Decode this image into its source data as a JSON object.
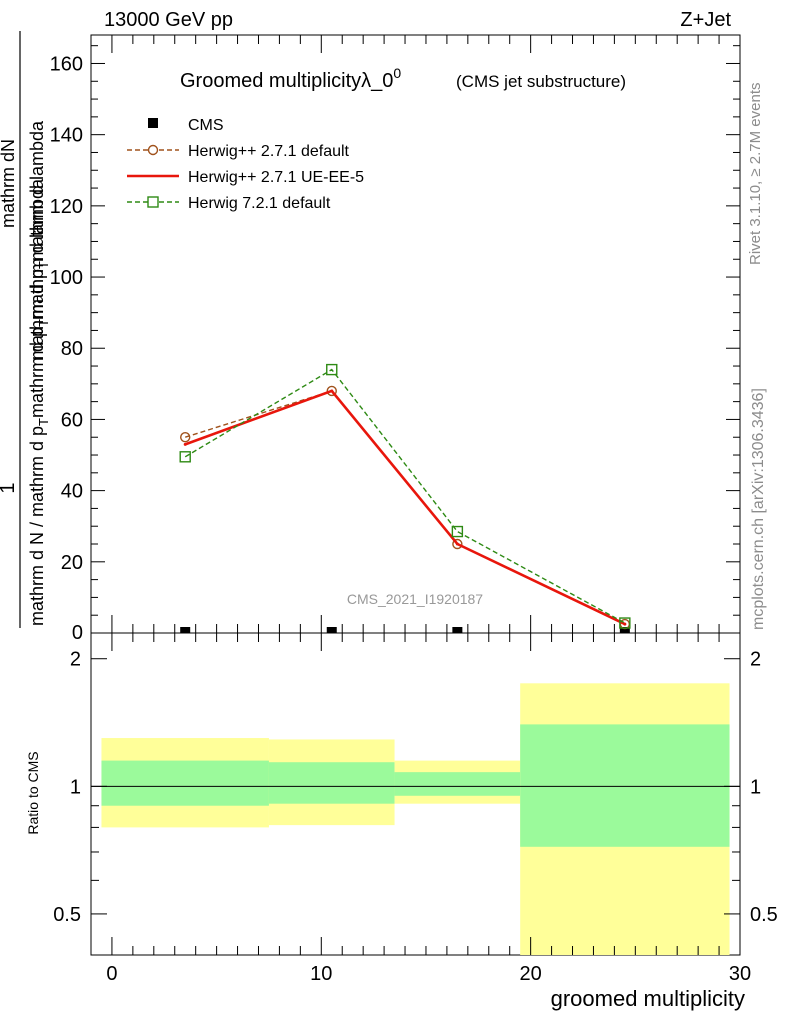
{
  "header": {
    "left": "13000 GeV pp",
    "right": "Z+Jet"
  },
  "side_texts": {
    "rivet": "Rivet 3.1.10, ≥ 2.7M events",
    "mcplots": "mcplots.cern.ch [arXiv:1306.3436]"
  },
  "colors": {
    "cms": "#000000",
    "herwig_271_default": "#a0521c",
    "herwig_271_ueee5": "#e8160c",
    "herwig_721_default": "#2e8a14",
    "band_inner": "#9bfa9b",
    "band_outer": "#ffff99"
  },
  "chart_data": [
    {
      "type": "line",
      "title": "Groomed multiplicityλ_0",
      "title_superscript": "0",
      "subtitle": "(CMS jet substructure)",
      "analysis_id": "CMS_2021_I1920187",
      "ylabel_numerator": "mathrm dN",
      "ylabel_denominator_1": "mathrm d p",
      "ylabel_denominator_1_sub": "T",
      "ylabel_denominator_2": "mathrm d p",
      "ylabel_denominator_2_sub": "T",
      "ylabel_numerator_1": "1",
      "ylabel_part_a": "mathrm d N / mathrm d p",
      "ylabel_part_a_sub": "T",
      "ylabel_part_b": "mathrm d lambda",
      "ylabel_part_c": "mathrm d p",
      "ylabel_part_c_sub": "T",
      "ylabel_part_d": "mathrm d lambda",
      "xlim": [
        -1,
        30
      ],
      "ylim": [
        0,
        168
      ],
      "yticks": [
        20,
        40,
        60,
        80,
        100,
        120,
        140,
        160
      ],
      "ytick_labels": [
        "20",
        "40",
        "60",
        "80",
        "100",
        "120",
        "140",
        "160"
      ],
      "ytick_zero_label": "0",
      "legend_position": "top-left",
      "series": [
        {
          "name": "CMS",
          "style": "marker",
          "x": [
            3.5,
            10.5,
            16.5,
            24.5
          ],
          "y": [
            0.2,
            0.2,
            0.2,
            0.2
          ]
        },
        {
          "name": "Herwig++ 2.7.1 default",
          "style": "dashed-circle",
          "x": [
            3.5,
            10.5,
            16.5,
            24.5
          ],
          "y": [
            55,
            68,
            25,
            2.5
          ]
        },
        {
          "name": "Herwig++ 2.7.1 UE-EE-5",
          "style": "solid",
          "x": [
            3.5,
            10.5,
            16.5,
            24.5
          ],
          "y": [
            53,
            68,
            25,
            2.5
          ]
        },
        {
          "name": "Herwig 7.2.1 default",
          "style": "dashed-square",
          "x": [
            3.5,
            10.5,
            16.5,
            24.5
          ],
          "y": [
            49.5,
            74,
            28.5,
            2.8
          ]
        }
      ]
    },
    {
      "type": "area",
      "ylabel": "Ratio to CMS",
      "xlabel": "groomed multiplicity",
      "xlim": [
        -1,
        30
      ],
      "ylim": [
        0.4,
        2.3
      ],
      "xticks": [
        0,
        10,
        20,
        30
      ],
      "xtick_labels": [
        "0",
        "10",
        "20",
        "30"
      ],
      "yticks": [
        0.5,
        1,
        2
      ],
      "ytick_labels": [
        "0.5",
        "1",
        "2"
      ],
      "reference_line": 1,
      "bins": [
        {
          "x_low": -0.5,
          "x_high": 7.5,
          "inner": [
            0.9,
            1.15
          ],
          "outer": [
            0.8,
            1.3
          ]
        },
        {
          "x_low": 7.5,
          "x_high": 13.5,
          "inner": [
            0.91,
            1.14
          ],
          "outer": [
            0.81,
            1.29
          ]
        },
        {
          "x_low": 13.5,
          "x_high": 19.5,
          "inner": [
            0.95,
            1.08
          ],
          "outer": [
            0.91,
            1.15
          ]
        },
        {
          "x_low": 19.5,
          "x_high": 29.5,
          "inner": [
            0.72,
            1.4
          ],
          "outer": [
            0.3,
            1.75
          ]
        }
      ]
    }
  ]
}
